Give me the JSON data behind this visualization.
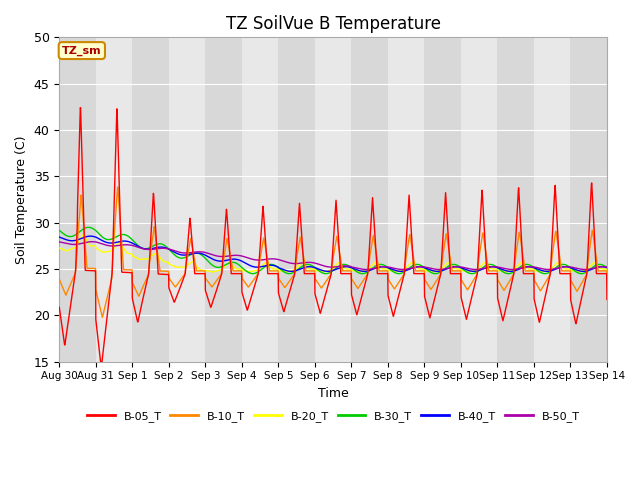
{
  "title": "TZ SoilVue B Temperature",
  "xlabel": "Time",
  "ylabel": "Soil Temperature (C)",
  "ylim": [
    15,
    50
  ],
  "yticks": [
    15,
    20,
    25,
    30,
    35,
    40,
    45,
    50
  ],
  "xtick_labels": [
    "Aug 30",
    "Aug 31",
    "Sep 1",
    "Sep 2",
    "Sep 3",
    "Sep 4",
    "Sep 5",
    "Sep 6",
    "Sep 7",
    "Sep 8",
    "Sep 9",
    "Sep 10",
    "Sep 11",
    "Sep 12",
    "Sep 13",
    "Sep 14"
  ],
  "series_colors": {
    "B-05_T": "#ff0000",
    "B-10_T": "#ff8800",
    "B-20_T": "#ffff00",
    "B-30_T": "#00cc00",
    "B-40_T": "#0000ff",
    "B-50_T": "#aa00aa"
  },
  "legend_label": "TZ_sm",
  "bg_color": "#e8e8e8",
  "band_color_dark": "#d8d8d8",
  "band_color_light": "#ececec"
}
